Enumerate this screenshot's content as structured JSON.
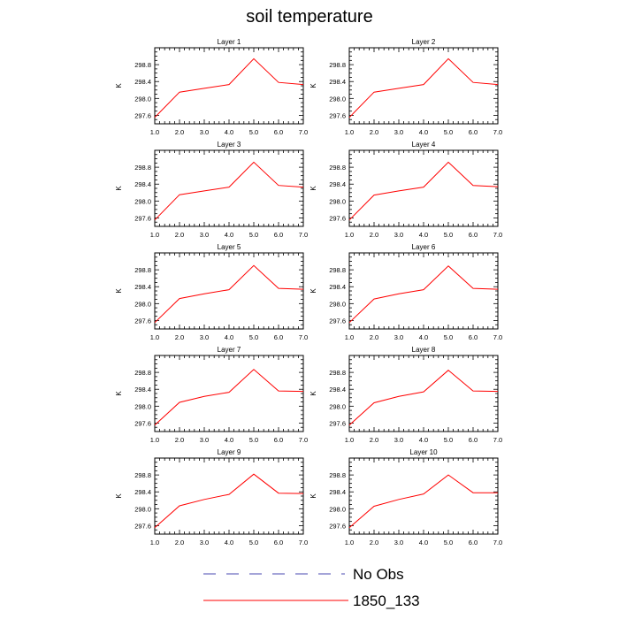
{
  "title": "soil temperature",
  "colors": {
    "model_line": "#ff0000",
    "obs_line": "#4a4ab0",
    "axis": "#000000"
  },
  "legend": {
    "items": [
      {
        "label": "No Obs",
        "style": "dashed",
        "color": "#4a4ab0"
      },
      {
        "label": "1850_133",
        "style": "solid",
        "color": "#ff0000"
      }
    ]
  },
  "chart_data": [
    {
      "type": "line",
      "title": "Layer 1",
      "ylabel": "K",
      "xlim": [
        1,
        7
      ],
      "ylim": [
        297.4,
        299.2
      ],
      "x_ticks": [
        "1.0",
        "2.0",
        "3.0",
        "4.0",
        "5.0",
        "6.0",
        "7.0"
      ],
      "y_ticks": [
        "297.6",
        "298.0",
        "298.4",
        "298.8"
      ],
      "series": [
        {
          "name": "1850_133",
          "x": [
            1,
            2,
            3,
            4,
            5,
            6,
            7
          ],
          "y": [
            297.55,
            298.15,
            298.24,
            298.33,
            298.94,
            298.38,
            298.33
          ]
        }
      ]
    },
    {
      "type": "line",
      "title": "Layer 2",
      "ylabel": "K",
      "xlim": [
        1,
        7
      ],
      "ylim": [
        297.4,
        299.2
      ],
      "x_ticks": [
        "1.0",
        "2.0",
        "3.0",
        "4.0",
        "5.0",
        "6.0",
        "7.0"
      ],
      "y_ticks": [
        "297.6",
        "298.0",
        "298.4",
        "298.8"
      ],
      "series": [
        {
          "name": "1850_133",
          "x": [
            1,
            2,
            3,
            4,
            5,
            6,
            7
          ],
          "y": [
            297.55,
            298.15,
            298.24,
            298.33,
            298.94,
            298.38,
            298.33
          ]
        }
      ]
    },
    {
      "type": "line",
      "title": "Layer 3",
      "ylabel": "K",
      "xlim": [
        1,
        7
      ],
      "ylim": [
        297.4,
        299.2
      ],
      "x_ticks": [
        "1.0",
        "2.0",
        "3.0",
        "4.0",
        "5.0",
        "6.0",
        "7.0"
      ],
      "y_ticks": [
        "297.6",
        "298.0",
        "298.4",
        "298.8"
      ],
      "series": [
        {
          "name": "1850_133",
          "x": [
            1,
            2,
            3,
            4,
            5,
            6,
            7
          ],
          "y": [
            297.55,
            298.15,
            298.24,
            298.33,
            298.92,
            298.37,
            298.33
          ]
        }
      ]
    },
    {
      "type": "line",
      "title": "Layer 4",
      "ylabel": "K",
      "xlim": [
        1,
        7
      ],
      "ylim": [
        297.4,
        299.2
      ],
      "x_ticks": [
        "1.0",
        "2.0",
        "3.0",
        "4.0",
        "5.0",
        "6.0",
        "7.0"
      ],
      "y_ticks": [
        "297.6",
        "298.0",
        "298.4",
        "298.8"
      ],
      "series": [
        {
          "name": "1850_133",
          "x": [
            1,
            2,
            3,
            4,
            5,
            6,
            7
          ],
          "y": [
            297.55,
            298.14,
            298.24,
            298.33,
            298.92,
            298.37,
            298.34
          ]
        }
      ]
    },
    {
      "type": "line",
      "title": "Layer 5",
      "ylabel": "K",
      "xlim": [
        1,
        7
      ],
      "ylim": [
        297.4,
        299.2
      ],
      "x_ticks": [
        "1.0",
        "2.0",
        "3.0",
        "4.0",
        "5.0",
        "6.0",
        "7.0"
      ],
      "y_ticks": [
        "297.6",
        "298.0",
        "298.4",
        "298.8"
      ],
      "series": [
        {
          "name": "1850_133",
          "x": [
            1,
            2,
            3,
            4,
            5,
            6,
            7
          ],
          "y": [
            297.55,
            298.12,
            298.23,
            298.33,
            298.9,
            298.36,
            298.34
          ]
        }
      ]
    },
    {
      "type": "line",
      "title": "Layer 6",
      "ylabel": "K",
      "xlim": [
        1,
        7
      ],
      "ylim": [
        297.4,
        299.2
      ],
      "x_ticks": [
        "1.0",
        "2.0",
        "3.0",
        "4.0",
        "5.0",
        "6.0",
        "7.0"
      ],
      "y_ticks": [
        "297.6",
        "298.0",
        "298.4",
        "298.8"
      ],
      "series": [
        {
          "name": "1850_133",
          "x": [
            1,
            2,
            3,
            4,
            5,
            6,
            7
          ],
          "y": [
            297.55,
            298.11,
            298.23,
            298.33,
            298.89,
            298.36,
            298.34
          ]
        }
      ]
    },
    {
      "type": "line",
      "title": "Layer 7",
      "ylabel": "K",
      "xlim": [
        1,
        7
      ],
      "ylim": [
        297.4,
        299.2
      ],
      "x_ticks": [
        "1.0",
        "2.0",
        "3.0",
        "4.0",
        "5.0",
        "6.0",
        "7.0"
      ],
      "y_ticks": [
        "297.6",
        "298.0",
        "298.4",
        "298.8"
      ],
      "series": [
        {
          "name": "1850_133",
          "x": [
            1,
            2,
            3,
            4,
            5,
            6,
            7
          ],
          "y": [
            297.55,
            298.09,
            298.23,
            298.33,
            298.87,
            298.36,
            298.35
          ]
        }
      ]
    },
    {
      "type": "line",
      "title": "Layer 8",
      "ylabel": "K",
      "xlim": [
        1,
        7
      ],
      "ylim": [
        297.4,
        299.2
      ],
      "x_ticks": [
        "1.0",
        "2.0",
        "3.0",
        "4.0",
        "5.0",
        "6.0",
        "7.0"
      ],
      "y_ticks": [
        "297.6",
        "298.0",
        "298.4",
        "298.8"
      ],
      "series": [
        {
          "name": "1850_133",
          "x": [
            1,
            2,
            3,
            4,
            5,
            6,
            7
          ],
          "y": [
            297.55,
            298.08,
            298.23,
            298.34,
            298.85,
            298.36,
            298.35
          ]
        }
      ]
    },
    {
      "type": "line",
      "title": "Layer 9",
      "ylabel": "K",
      "xlim": [
        1,
        7
      ],
      "ylim": [
        297.4,
        299.2
      ],
      "x_ticks": [
        "1.0",
        "2.0",
        "3.0",
        "4.0",
        "5.0",
        "6.0",
        "7.0"
      ],
      "y_ticks": [
        "297.6",
        "298.0",
        "298.4",
        "298.8"
      ],
      "series": [
        {
          "name": "1850_133",
          "x": [
            1,
            2,
            3,
            4,
            5,
            6,
            7
          ],
          "y": [
            297.55,
            298.07,
            298.22,
            298.34,
            298.82,
            298.37,
            298.36
          ]
        }
      ]
    },
    {
      "type": "line",
      "title": "Layer 10",
      "ylabel": "K",
      "xlim": [
        1,
        7
      ],
      "ylim": [
        297.4,
        299.2
      ],
      "x_ticks": [
        "1.0",
        "2.0",
        "3.0",
        "4.0",
        "5.0",
        "6.0",
        "7.0"
      ],
      "y_ticks": [
        "297.6",
        "298.0",
        "298.4",
        "298.8"
      ],
      "series": [
        {
          "name": "1850_133",
          "x": [
            1,
            2,
            3,
            4,
            5,
            6,
            7
          ],
          "y": [
            297.55,
            298.06,
            298.22,
            298.35,
            298.8,
            298.38,
            298.38
          ]
        }
      ]
    }
  ]
}
